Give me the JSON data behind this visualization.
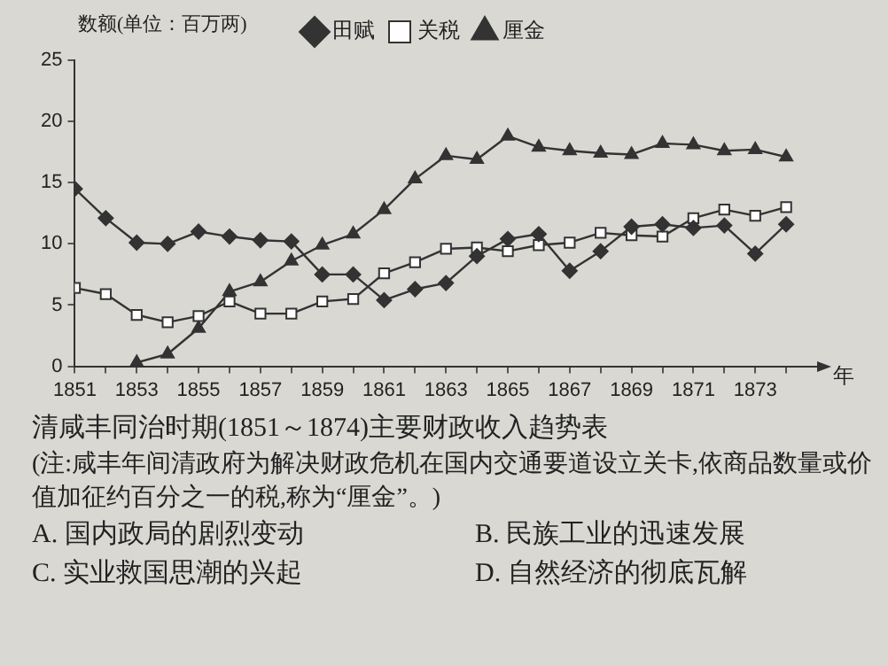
{
  "chart_data": {
    "type": "line",
    "title": "清咸丰同治时期(1851～1874)主要财政收入趋势表",
    "ylabel": "数额(单位：百万两)",
    "xlabel": "年",
    "x": [
      1851,
      1852,
      1853,
      1854,
      1855,
      1856,
      1857,
      1858,
      1859,
      1860,
      1861,
      1862,
      1863,
      1864,
      1865,
      1866,
      1867,
      1868,
      1869,
      1870,
      1871,
      1872,
      1873,
      1874
    ],
    "series": [
      {
        "name": "田赋",
        "color": "#333333",
        "marker": "diamond",
        "values": [
          14.5,
          12.1,
          10.1,
          10,
          11,
          10.6,
          10.3,
          10.2,
          7.5,
          7.5,
          5.4,
          6.3,
          6.8,
          9.0,
          10.4,
          10.8,
          7.8,
          9.4,
          11.4,
          11.6,
          11.3,
          11.5,
          9.2,
          11.6
        ]
      },
      {
        "name": "关税",
        "color": "#333333",
        "marker": "square",
        "values": [
          6.4,
          5.9,
          4.2,
          3.6,
          4.1,
          5.3,
          4.3,
          4.3,
          5.3,
          5.5,
          7.6,
          8.5,
          9.6,
          9.7,
          9.4,
          9.9,
          10.1,
          10.9,
          10.7,
          10.6,
          12.1,
          12.8,
          12.3,
          13.0
        ]
      },
      {
        "name": "厘金",
        "color": "#333333",
        "marker": "triangle",
        "values": [
          null,
          null,
          0.3,
          1.0,
          3.1,
          6.1,
          6.9,
          8.6,
          9.9,
          10.8,
          12.8,
          15.3,
          17.2,
          16.9,
          18.8,
          17.9,
          17.6,
          17.4,
          17.3,
          18.2,
          18.1,
          17.6,
          17.7,
          17.1
        ]
      }
    ],
    "xlim": [
      1851,
      1875
    ],
    "xticks": [
      1851,
      {
        "value": 1852,
        "label": null
      },
      1853,
      {
        "value": 1854,
        "label": null
      },
      1855,
      {
        "value": 1856,
        "label": null
      },
      1857,
      {
        "value": 1858,
        "label": null
      },
      1859,
      {
        "value": 1860,
        "label": null
      },
      1861,
      {
        "value": 1862,
        "label": null
      },
      1863,
      {
        "value": 1864,
        "label": null
      },
      1865,
      {
        "value": 1866,
        "label": null
      },
      1867,
      {
        "value": 1868,
        "label": null
      },
      1869,
      {
        "value": 1870,
        "label": null
      },
      1871,
      {
        "value": 1872,
        "label": null
      },
      1873,
      {
        "value": 1874,
        "label": null
      }
    ],
    "ylim": [
      0,
      25
    ],
    "yticks": [
      0,
      5,
      10,
      15,
      20,
      25
    ],
    "legend": "top",
    "grid": false,
    "annotations": [
      "(注:咸丰年间清政府为解决财政危机在国内交通要道设立关卡,依商品数量或价值加征约百分之一的税,称为“厘金”。)",
      "A. 国内政局的剧烈变动",
      "B. 民族工业的迅速发展",
      "C. 实业救国思潮的兴起",
      "D. 自然经济的彻底瓦解"
    ]
  }
}
